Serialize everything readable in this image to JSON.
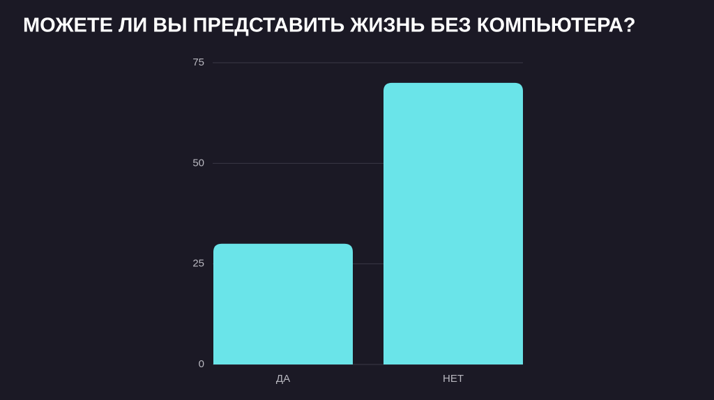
{
  "chart_data": {
    "type": "bar",
    "title": "МОЖЕТЕ ЛИ ВЫ ПРЕДСТАВИТЬ ЖИЗНЬ БЕЗ КОМПЬЮТЕРА?",
    "categories": [
      "ДА",
      "НЕТ"
    ],
    "values": [
      30,
      70
    ],
    "color": "#6ae4e9",
    "ylim": [
      0,
      75
    ],
    "yticks": [
      0,
      25,
      50,
      75
    ],
    "grid": true
  }
}
